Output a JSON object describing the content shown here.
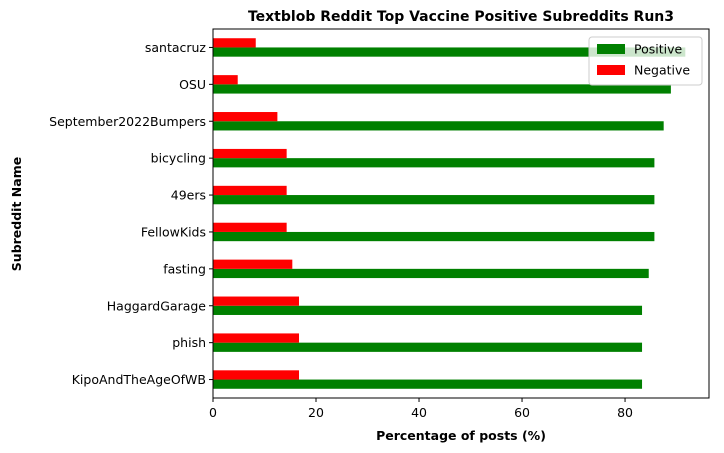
{
  "chart_data": {
    "type": "bar",
    "orientation": "horizontal",
    "title": "Textblob Reddit Top Vaccine Positive Subreddits Run3",
    "xlabel": "Percentage of posts (%)",
    "ylabel": "Subreddit Name",
    "categories": [
      "KipoAndTheAgeOfWB",
      "phish",
      "HaggardGarage",
      "fasting",
      "FellowKids",
      "49ers",
      "bicycling",
      "September2022Bumpers",
      "OSU",
      "santacruz"
    ],
    "series": [
      {
        "name": "Positive",
        "color": "#008000",
        "values": [
          83.3,
          83.3,
          83.3,
          84.6,
          85.7,
          85.7,
          85.7,
          87.5,
          88.9,
          91.7
        ]
      },
      {
        "name": "Negative",
        "color": "#ff0000",
        "values": [
          16.7,
          16.7,
          16.7,
          15.4,
          14.3,
          14.3,
          14.3,
          12.5,
          4.8,
          8.3
        ]
      }
    ],
    "xlim": [
      0,
      96.3
    ],
    "xticks": [
      0,
      20,
      40,
      60,
      80
    ],
    "grid": false,
    "legend_position": "top-right"
  }
}
